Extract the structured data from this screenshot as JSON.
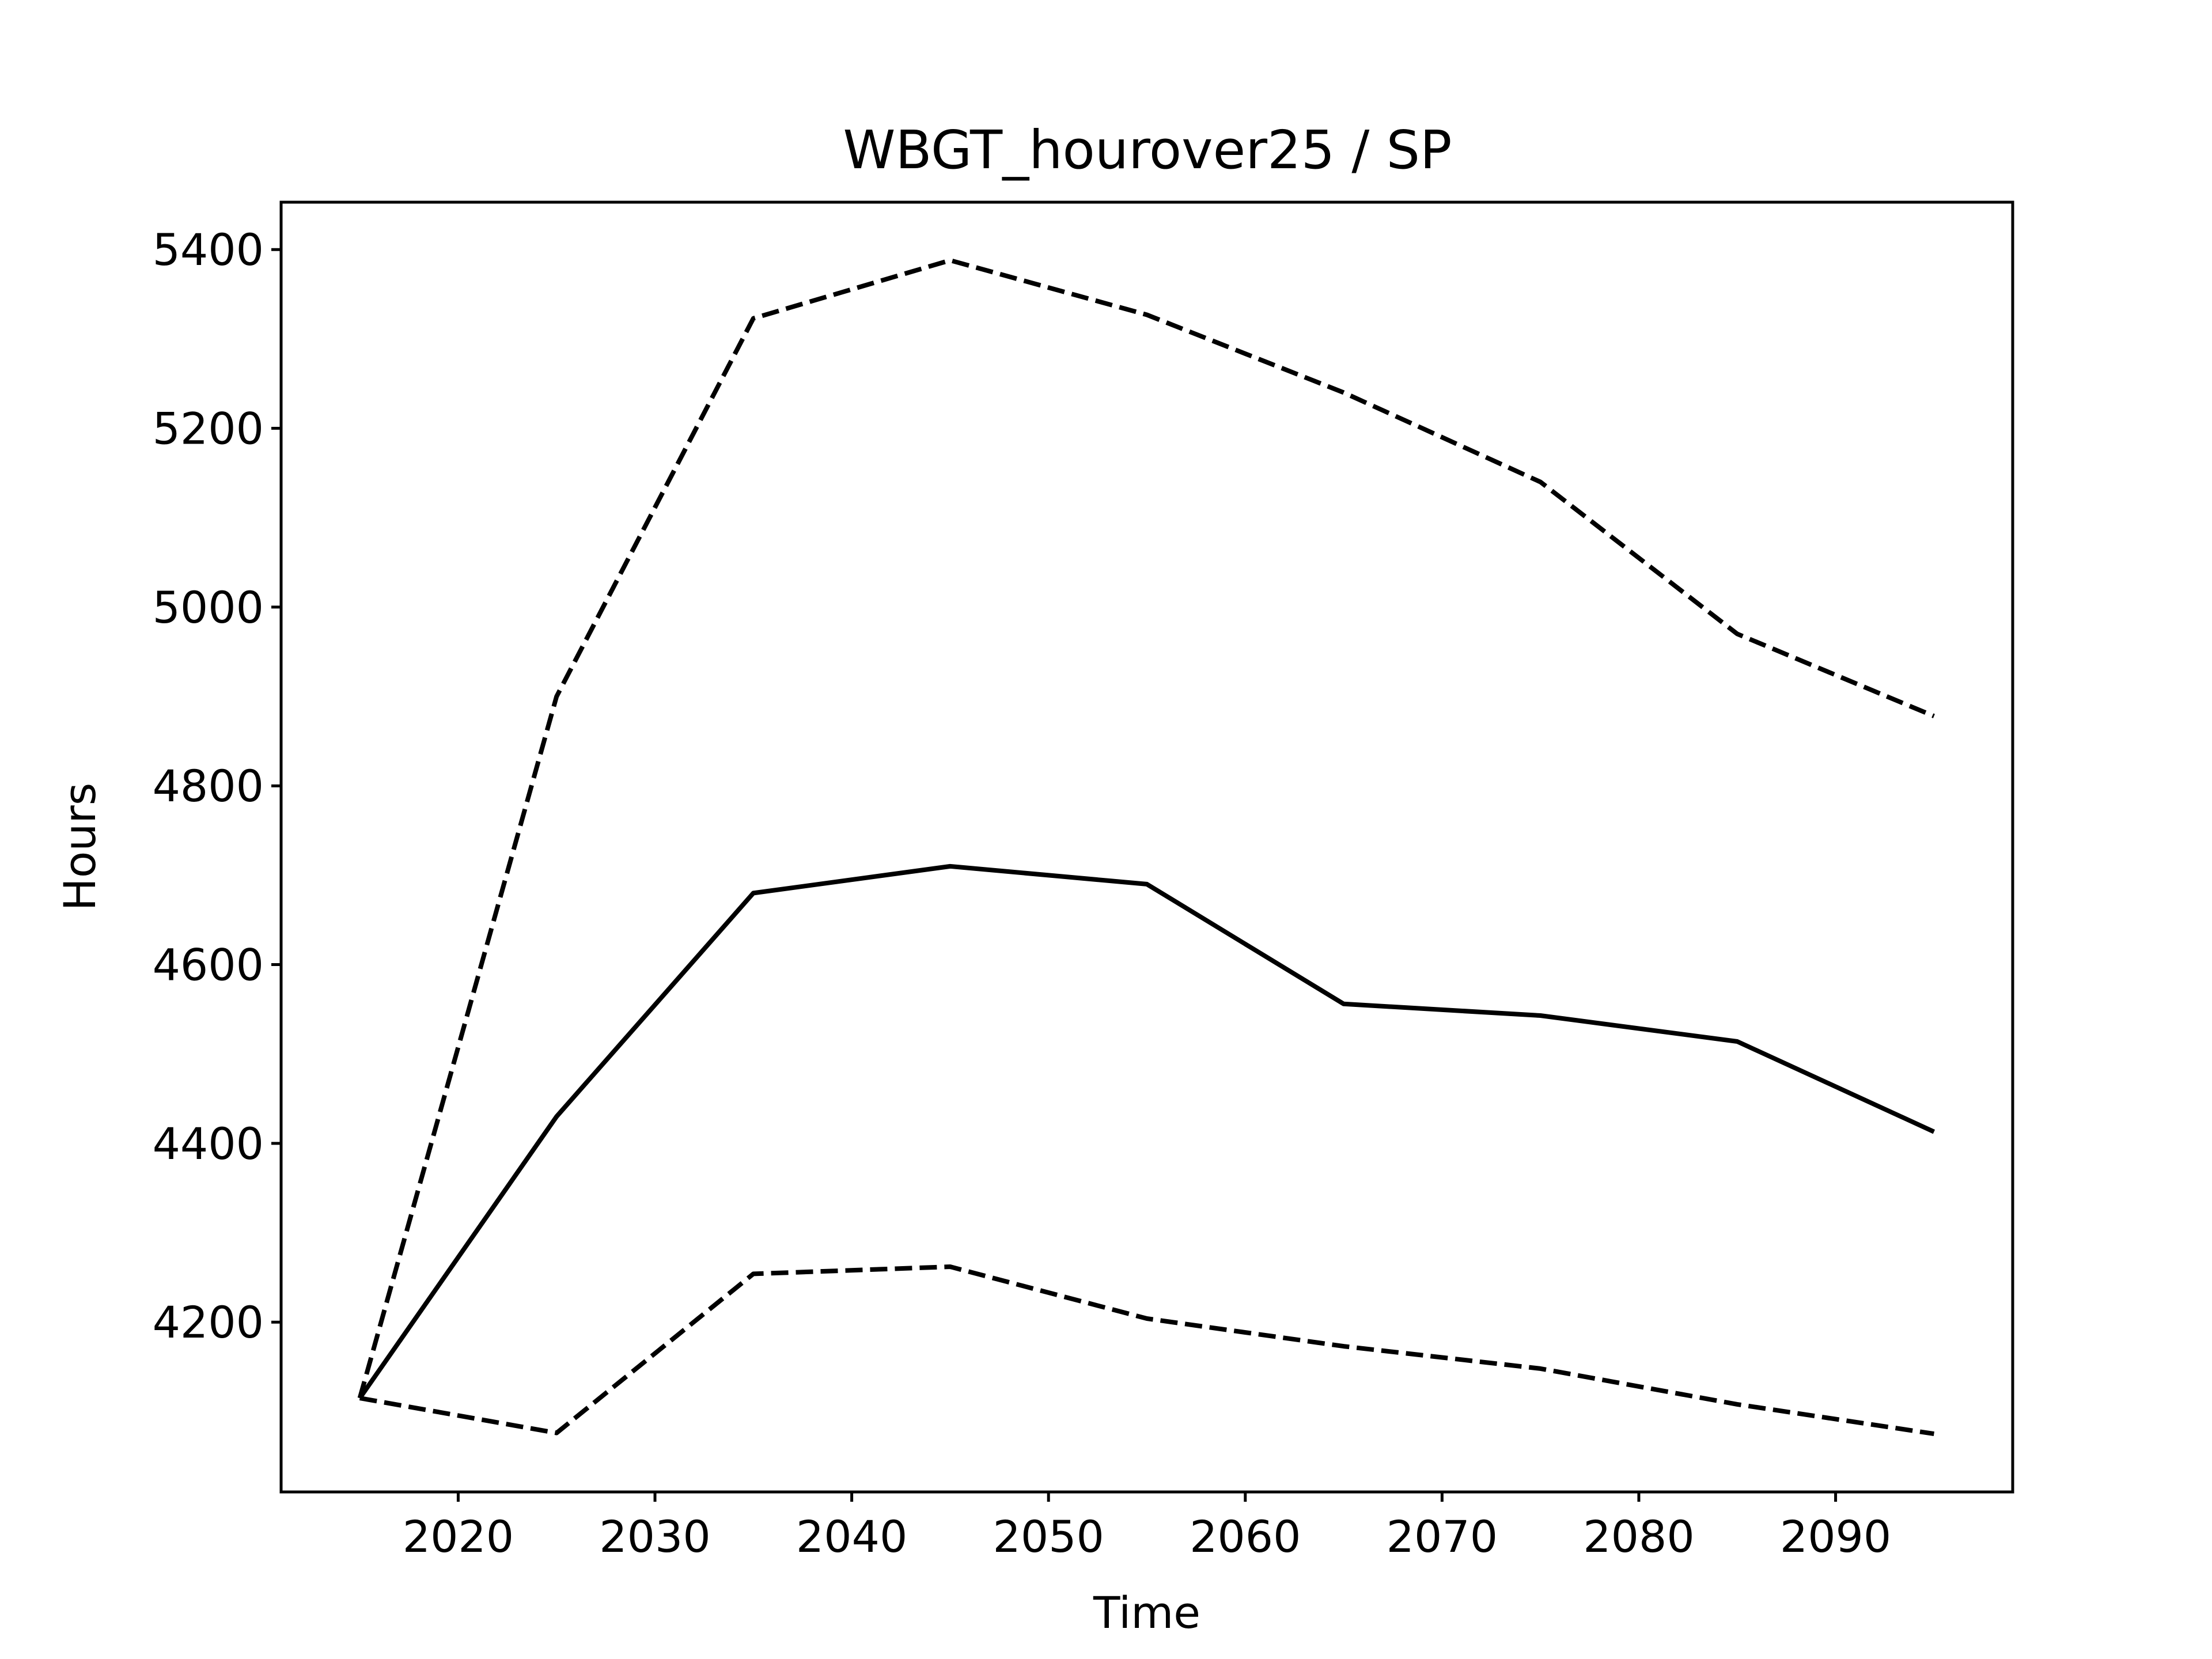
{
  "chart_data": {
    "type": "line",
    "title": "WBGT_hourover25 / SP",
    "xlabel": "Time",
    "ylabel": "Hours",
    "xlim": [
      2011,
      2099
    ],
    "ylim": [
      4010,
      5453
    ],
    "xticks": [
      2020,
      2030,
      2040,
      2050,
      2060,
      2070,
      2080,
      2090
    ],
    "yticks": [
      4200,
      4400,
      4600,
      4800,
      5000,
      5200,
      5400
    ],
    "grid": false,
    "x": [
      2015,
      2025,
      2035,
      2045,
      2055,
      2065,
      2075,
      2085,
      2095
    ],
    "series": [
      {
        "style": "solid",
        "color": "#000000",
        "values": [
          4115,
          4430,
          4680,
          4710,
          4690,
          4556,
          4543,
          4514,
          4413
        ]
      },
      {
        "style": "dashed",
        "color": "#000000",
        "values": [
          4115,
          4900,
          5323,
          5388,
          5327,
          5240,
          5140,
          4970,
          4878
        ]
      },
      {
        "style": "dashed",
        "color": "#000000",
        "values": [
          4115,
          4076,
          4254,
          4262,
          4204,
          4173,
          4148,
          4108,
          4075
        ]
      }
    ]
  }
}
